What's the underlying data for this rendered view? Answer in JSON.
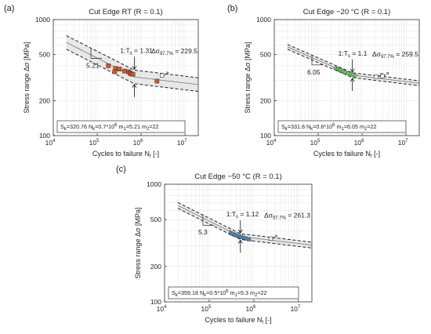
{
  "chart_data": [
    {
      "type": "scatter",
      "panel": "(a)",
      "title": "Cut Edge RT (R = 0.1)",
      "xlabel": "Cycles to failure N",
      "xlabel_sub": "f",
      "xlabel_tail": " [-]",
      "ylabel": "Stress range Δσ [MPa]",
      "xscale": "log",
      "yscale": "log",
      "xlim": [
        10000,
        20000000
      ],
      "ylim": [
        100,
        1000
      ],
      "xticks": [
        "10",
        "10",
        "10",
        "10"
      ],
      "xtick_exp": [
        "4",
        "5",
        "6",
        "7"
      ],
      "yticks": [
        "100",
        "200",
        "500",
        "1000"
      ],
      "grid": true,
      "marker_color": "#d4542a",
      "band_color": "#e8e8e8",
      "ts_label": "1:T",
      "ts_sub": "s",
      "ts_value": " = 1.31",
      "slope_label": "5.21",
      "delta_label": "Δσ",
      "delta_sub": "97.7%",
      "delta_value": " = 229.5",
      "stats": {
        "Sk": "S",
        "Sk_sub": "k",
        "Sk_val": "=320.76  N",
        "Nk_sub": "k",
        "Nk_val": "=0.7*10",
        "Nk_exp": "6",
        "m1": "  m",
        "m1_sub": "1",
        "m1_val": "=5.21  m",
        "m2_sub": "2",
        "m2_val": "=22"
      },
      "knee": {
        "x": 700000,
        "y": 320.76
      },
      "m1": 5.21,
      "m2": 22,
      "band_factor": 1.31,
      "points": [
        {
          "x": 180000,
          "y": 400
        },
        {
          "x": 260000,
          "y": 380
        },
        {
          "x": 320000,
          "y": 375
        },
        {
          "x": 420000,
          "y": 360
        },
        {
          "x": 520000,
          "y": 355
        },
        {
          "x": 560000,
          "y": 345
        },
        {
          "x": 600000,
          "y": 340
        },
        {
          "x": 650000,
          "y": 338
        },
        {
          "x": 250000,
          "y": 355
        },
        {
          "x": 2300000,
          "y": 295
        }
      ],
      "runouts": [
        {
          "x": 3000000,
          "y": 330
        }
      ]
    },
    {
      "type": "scatter",
      "panel": "(b)",
      "title": "Cut Edge −20 °C (R = 0.1)",
      "xlabel": "Cycles to failure N",
      "xlabel_sub": "f",
      "xlabel_tail": " [-]",
      "ylabel": "Stress range Δσ [MPa]",
      "xscale": "log",
      "yscale": "log",
      "xlim": [
        10000,
        20000000
      ],
      "ylim": [
        100,
        1000
      ],
      "xticks": [
        "10",
        "10",
        "10",
        "10"
      ],
      "xtick_exp": [
        "4",
        "5",
        "6",
        "7"
      ],
      "yticks": [
        "100",
        "200",
        "500",
        "1000"
      ],
      "grid": true,
      "marker_color": "#6cc96c",
      "band_color": "#e8e8e8",
      "ts_label": "1:T",
      "ts_sub": "s",
      "ts_value": " = 1.1",
      "slope_label": "6.05",
      "delta_label": "Δσ",
      "delta_sub": "97.7%",
      "delta_value": " = 259.5",
      "stats": {
        "Sk": "S",
        "Sk_sub": "k",
        "Sk_val": "=331.8  N",
        "Nk_sub": "k",
        "Nk_val": "=0.6*10",
        "Nk_exp": "6",
        "m1": "  m",
        "m1_sub": "1",
        "m1_val": "=6.05  m",
        "m2_sub": "2",
        "m2_val": "=22"
      },
      "knee": {
        "x": 600000,
        "y": 331.8
      },
      "m1": 6.05,
      "m2": 22,
      "band_factor": 1.1,
      "points": [
        {
          "x": 250000,
          "y": 380
        },
        {
          "x": 280000,
          "y": 375
        },
        {
          "x": 300000,
          "y": 370
        },
        {
          "x": 320000,
          "y": 365
        },
        {
          "x": 350000,
          "y": 360
        },
        {
          "x": 380000,
          "y": 355
        },
        {
          "x": 420000,
          "y": 350
        },
        {
          "x": 480000,
          "y": 345
        },
        {
          "x": 550000,
          "y": 340
        },
        {
          "x": 620000,
          "y": 335
        },
        {
          "x": 700000,
          "y": 330
        }
      ],
      "runouts": [
        {
          "x": 2100000,
          "y": 322
        },
        {
          "x": 2900000,
          "y": 327
        }
      ]
    },
    {
      "type": "scatter",
      "panel": "(c)",
      "title": "Cut Edge −50 °C (R = 0.1)",
      "xlabel": "Cycles to failure N",
      "xlabel_sub": "f",
      "xlabel_tail": " [-]",
      "ylabel": "Stress range Δσ [MPa]",
      "xscale": "log",
      "yscale": "log",
      "xlim": [
        10000,
        20000000
      ],
      "ylim": [
        100,
        1000
      ],
      "xticks": [
        "10",
        "10",
        "10",
        "10"
      ],
      "xtick_exp": [
        "4",
        "5",
        "6",
        "7"
      ],
      "yticks": [
        "100",
        "200",
        "500",
        "1000"
      ],
      "grid": true,
      "marker_color": "#4a8fc4",
      "band_color": "#e8e8e8",
      "ts_label": "1:T",
      "ts_sub": "s",
      "ts_value": " = 1.12",
      "slope_label": "5.3",
      "delta_label": "Δσ",
      "delta_sub": "97.7%",
      "delta_value": " = 261.3",
      "stats": {
        "Sk": "S",
        "Sk_sub": "k",
        "Sk_val": "=359.18  N",
        "Nk_sub": "k",
        "Nk_val": "=0.5*10",
        "Nk_exp": "6",
        "m1": "  m",
        "m1_sub": "1",
        "m1_val": "=5.3  m",
        "m2_sub": "2",
        "m2_val": "=22"
      },
      "knee": {
        "x": 500000,
        "y": 359.18
      },
      "m1": 5.3,
      "m2": 22,
      "band_factor": 1.12,
      "points": [
        {
          "x": 300000,
          "y": 390
        },
        {
          "x": 330000,
          "y": 380
        },
        {
          "x": 370000,
          "y": 375
        },
        {
          "x": 400000,
          "y": 370
        },
        {
          "x": 450000,
          "y": 365
        },
        {
          "x": 500000,
          "y": 360
        },
        {
          "x": 560000,
          "y": 355
        },
        {
          "x": 620000,
          "y": 350
        },
        {
          "x": 700000,
          "y": 345
        },
        {
          "x": 800000,
          "y": 340
        }
      ],
      "runouts": [
        {
          "x": 2400000,
          "y": 345
        }
      ]
    }
  ]
}
